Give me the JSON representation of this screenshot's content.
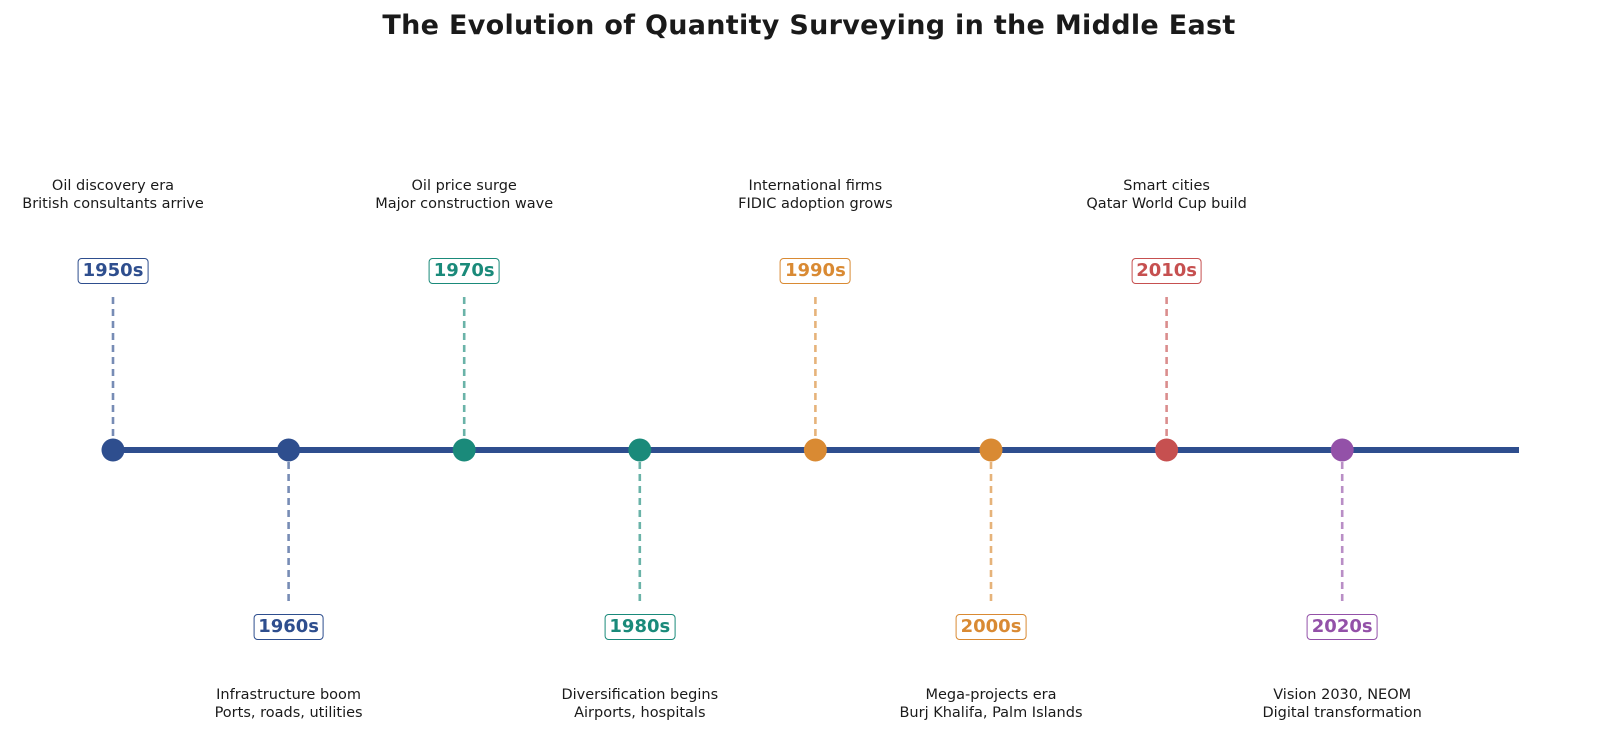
{
  "title": "The Evolution of Quantity Surveying in the Middle East",
  "axis_color": "#2e4e8e",
  "milestones": [
    {
      "decade": "1950s",
      "line1": "Oil discovery era",
      "line2": "British consultants arrive",
      "color": "#2e4e8e",
      "side": "above"
    },
    {
      "decade": "1960s",
      "line1": "Infrastructure boom",
      "line2": "Ports, roads, utilities",
      "color": "#2e4e8e",
      "side": "below"
    },
    {
      "decade": "1970s",
      "line1": "Oil price surge",
      "line2": "Major construction wave",
      "color": "#1a8a7a",
      "side": "above"
    },
    {
      "decade": "1980s",
      "line1": "Diversification begins",
      "line2": "Airports, hospitals",
      "color": "#1a8a7a",
      "side": "below"
    },
    {
      "decade": "1990s",
      "line1": "International firms",
      "line2": "FIDIC adoption grows",
      "color": "#d98a33",
      "side": "above"
    },
    {
      "decade": "2000s",
      "line1": "Mega-projects era",
      "line2": "Burj Khalifa, Palm Islands",
      "color": "#d98a33",
      "side": "below"
    },
    {
      "decade": "2010s",
      "line1": "Smart cities",
      "line2": "Qatar World Cup build",
      "color": "#c65050",
      "side": "above"
    },
    {
      "decade": "2020s",
      "line1": "Vision 2030, NEOM",
      "line2": "Digital transformation",
      "color": "#9351a8",
      "side": "below"
    }
  ]
}
